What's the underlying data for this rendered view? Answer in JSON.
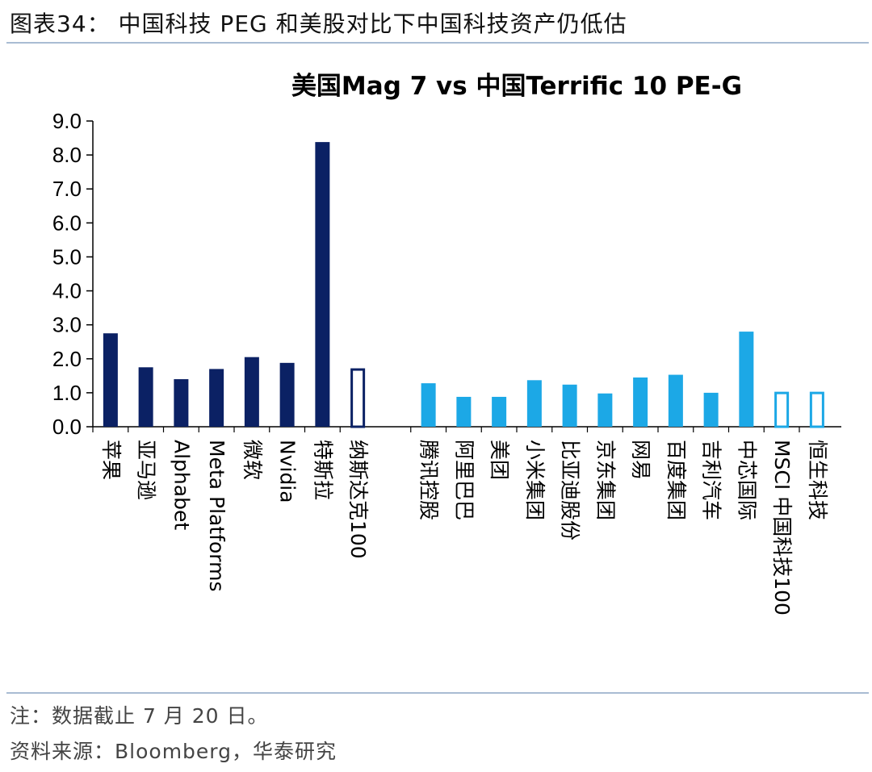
{
  "header": {
    "figure_title": "图表34：   中国科技 PEG 和美股对比下中国科技资产仍低估"
  },
  "chart_data": {
    "type": "bar",
    "title": "美国Mag 7 vs 中国Terrific 10 PE-G",
    "xlabel": "",
    "ylabel": "",
    "ylim": [
      0,
      9
    ],
    "yticks": [
      "0.0",
      "1.0",
      "2.0",
      "3.0",
      "4.0",
      "5.0",
      "6.0",
      "7.0",
      "8.0",
      "9.0"
    ],
    "grid": false,
    "legend": "none",
    "colors": {
      "us": "#0b2164",
      "cn": "#1ca8e6",
      "axis": "#000000"
    },
    "groups": [
      {
        "color_key": "us",
        "categories": [
          "苹果",
          "亚马逊",
          "Alphabet",
          "Meta Platforms",
          "微软",
          "Nvidia",
          "特斯拉",
          "纳斯达克100"
        ],
        "values": [
          2.75,
          1.75,
          1.4,
          1.7,
          2.05,
          1.88,
          8.38,
          1.72
        ],
        "outlined": [
          false,
          false,
          false,
          false,
          false,
          false,
          false,
          true
        ]
      },
      {
        "color_key": "cn",
        "categories": [
          "腾讯控股",
          "阿里巴巴",
          "美团",
          "小米集团",
          "比亚迪股份",
          "京东集团",
          "网易",
          "百度集团",
          "吉利汽车",
          "中芯国际",
          "MSCI 中国科技100",
          "恒生科技"
        ],
        "values": [
          1.28,
          0.88,
          0.88,
          1.37,
          1.24,
          0.98,
          1.45,
          1.53,
          1.0,
          2.8,
          1.03,
          1.03
        ],
        "outlined": [
          false,
          false,
          false,
          false,
          false,
          false,
          false,
          false,
          false,
          false,
          true,
          true
        ]
      }
    ]
  },
  "footer": {
    "note": "注：数据截止 7 月 20 日。",
    "source": "资料来源：Bloomberg，华泰研究"
  }
}
